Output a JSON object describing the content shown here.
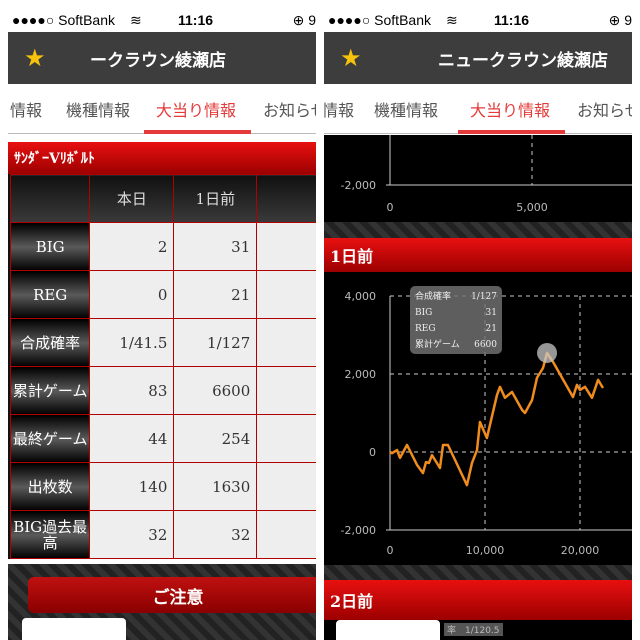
{
  "status": {
    "carrier": "●●●●○ SoftBank",
    "wifi_icon": "wifi-icon",
    "time": "11:16",
    "battery_fragment": "9"
  },
  "left": {
    "header_title": "ークラウン綾瀬店",
    "tabs": [
      "情報",
      "機種情報",
      "大当り情報",
      "お知らせ"
    ],
    "machine_name": "ｻﾝﾀﾞｰVﾘﾎﾞﾙﾄ",
    "columns": [
      "",
      "本日",
      "1日前",
      ""
    ],
    "rows": [
      {
        "label": "BIG",
        "today": "2",
        "prev": "31"
      },
      {
        "label": "REG",
        "today": "0",
        "prev": "21"
      },
      {
        "label": "合成確率",
        "today": "1/41.5",
        "prev": "1/127"
      },
      {
        "label": "累計ゲーム",
        "today": "83",
        "prev": "6600"
      },
      {
        "label": "最終ゲーム",
        "today": "44",
        "prev": "254"
      },
      {
        "label": "出枚数",
        "today": "140",
        "prev": "1630"
      },
      {
        "label": "BIG過去最高",
        "today": "32",
        "prev": "32"
      }
    ],
    "notice_button": "ご注意"
  },
  "right": {
    "header_title": "ニュークラウン綾瀬店",
    "tabs": [
      "情報",
      "機種情報",
      "大当り情報",
      "お知らせ"
    ],
    "top_chart": {
      "y_tick": "-2,000",
      "x_ticks": [
        "0",
        "5,000"
      ]
    },
    "section1": "1日前",
    "section2": "2日前",
    "section2_tooltip_fragment": "率　1/120.5",
    "tooltip": [
      {
        "k": "合成確率",
        "v": "1/127"
      },
      {
        "k": "BIG",
        "v": "31"
      },
      {
        "k": "REG",
        "v": "21"
      },
      {
        "k": "累計ゲーム",
        "v": "6600"
      }
    ]
  },
  "chart_data": {
    "type": "line",
    "xlim": [
      0,
      24000
    ],
    "ylim": [
      -2000,
      4000
    ],
    "x_ticks": [
      "0",
      "10,000",
      "20,000"
    ],
    "y_ticks": [
      "4,000",
      "2,000",
      "0",
      "-2,000"
    ],
    "grid": true,
    "line_color": "#f08c1e",
    "x": [
      0,
      210,
      740,
      1050,
      1790,
      2840,
      3470,
      3790,
      4100,
      4420,
      5260,
      5580,
      6100,
      8100,
      8630,
      9160,
      9470,
      10200,
      11260,
      11580,
      12100,
      12840,
      13900,
      14210,
      14950,
      15470,
      16100,
      16530,
      17160,
      19260,
      19680,
      20000,
      20530,
      21260,
      21900,
      22420
    ],
    "y": [
      0,
      -30,
      50,
      -150,
      180,
      -330,
      -540,
      -260,
      -280,
      -80,
      -410,
      180,
      180,
      -850,
      -280,
      50,
      770,
      360,
      1460,
      1670,
      1390,
      1540,
      1080,
      1000,
      1330,
      1900,
      2150,
      2540,
      2310,
      1410,
      1720,
      1590,
      1670,
      1390,
      1850,
      1640
    ],
    "highlight": {
      "x": 16530,
      "y": 2540
    }
  }
}
